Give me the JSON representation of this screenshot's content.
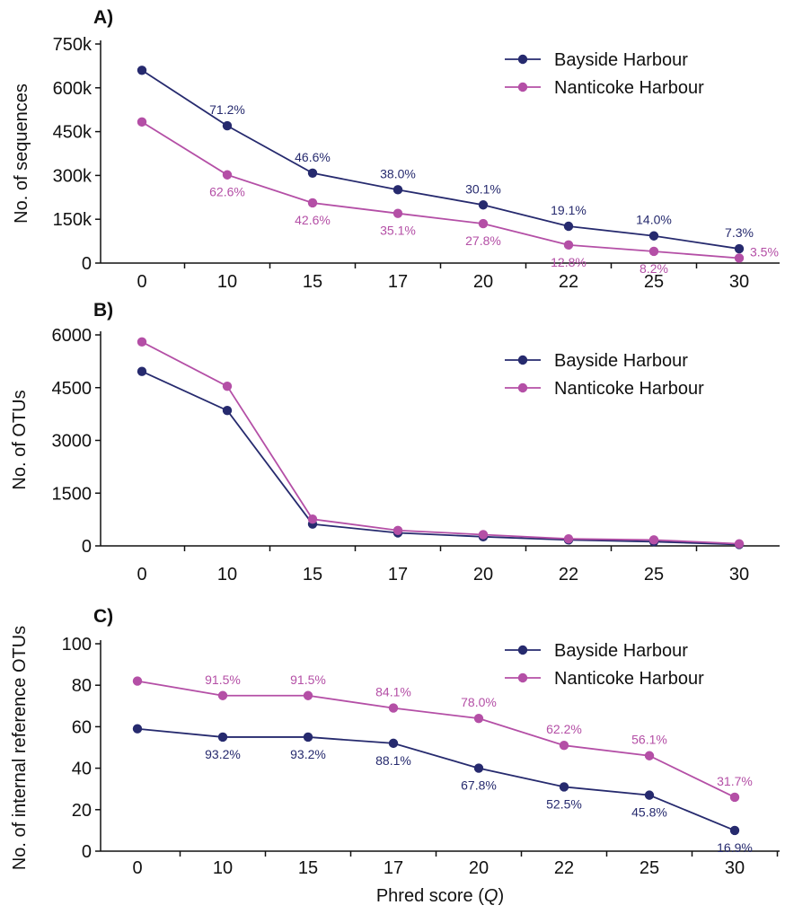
{
  "chart_data": [
    {
      "type": "line",
      "panel_label": "A)",
      "ylabel": "No. of sequences",
      "xlabel": "",
      "categories": [
        "0",
        "10",
        "15",
        "17",
        "20",
        "22",
        "25",
        "30"
      ],
      "ylim": [
        0,
        750000
      ],
      "yticks": [
        0,
        150000,
        300000,
        450000,
        600000,
        750000
      ],
      "ytick_labels": [
        "0",
        "150k",
        "300k",
        "450k",
        "600k",
        "750k"
      ],
      "legend": "top-right",
      "series": [
        {
          "name": "Bayside Harbour",
          "color": "#262a6e",
          "values": [
            660000,
            470000,
            308000,
            251000,
            199000,
            126000,
            93000,
            49000
          ],
          "labels": [
            "",
            "71.2%",
            "46.6%",
            "38.0%",
            "30.1%",
            "19.1%",
            "14.0%",
            "7.3%"
          ],
          "label_pos": "above"
        },
        {
          "name": "Nanticoke Harbour",
          "color": "#b44fa6",
          "values": [
            483000,
            302000,
            206000,
            170000,
            135000,
            62000,
            40000,
            17000
          ],
          "labels": [
            "",
            "62.6%",
            "42.6%",
            "35.1%",
            "27.8%",
            "12.8%",
            "8.2%",
            "3.5%"
          ],
          "label_pos": "below"
        }
      ]
    },
    {
      "type": "line",
      "panel_label": "B)",
      "ylabel": "No. of OTUs",
      "xlabel": "",
      "categories": [
        "0",
        "10",
        "15",
        "17",
        "20",
        "22",
        "25",
        "30"
      ],
      "ylim": [
        0,
        6000
      ],
      "yticks": [
        0,
        1500,
        3000,
        4500,
        6000
      ],
      "ytick_labels": [
        "0",
        "1500",
        "3000",
        "4500",
        "6000"
      ],
      "legend": "top-right",
      "series": [
        {
          "name": "Bayside Harbour",
          "color": "#262a6e",
          "values": [
            4960,
            3850,
            620,
            370,
            260,
            170,
            120,
            40
          ],
          "labels": [
            "",
            "",
            "",
            "",
            "",
            "",
            "",
            ""
          ],
          "label_pos": "none"
        },
        {
          "name": "Nanticoke Harbour",
          "color": "#b44fa6",
          "values": [
            5800,
            4540,
            760,
            440,
            320,
            200,
            170,
            60
          ],
          "labels": [
            "",
            "",
            "",
            "",
            "",
            "",
            "",
            ""
          ],
          "label_pos": "none"
        }
      ]
    },
    {
      "type": "line",
      "panel_label": "C)",
      "ylabel": "No. of internal reference OTUs",
      "xlabel": "Phred score (Q)",
      "categories": [
        "0",
        "10",
        "15",
        "17",
        "20",
        "22",
        "25",
        "30"
      ],
      "ylim": [
        0,
        100
      ],
      "yticks": [
        0,
        20,
        40,
        60,
        80,
        100
      ],
      "ytick_labels": [
        "0",
        "20",
        "40",
        "60",
        "80",
        "100"
      ],
      "legend": "top-right",
      "series": [
        {
          "name": "Bayside Harbour",
          "color": "#262a6e",
          "values": [
            59,
            55,
            55,
            52,
            40,
            31,
            27,
            10
          ],
          "labels": [
            "",
            "93.2%",
            "93.2%",
            "88.1%",
            "67.8%",
            "52.5%",
            "45.8%",
            "16.9%"
          ],
          "label_pos": "below"
        },
        {
          "name": "Nanticoke Harbour",
          "color": "#b44fa6",
          "values": [
            82,
            75,
            75,
            69,
            64,
            51,
            46,
            26
          ],
          "labels": [
            "",
            "91.5%",
            "91.5%",
            "84.1%",
            "78.0%",
            "62.2%",
            "56.1%",
            "31.7%"
          ],
          "label_pos": "above"
        }
      ]
    }
  ]
}
